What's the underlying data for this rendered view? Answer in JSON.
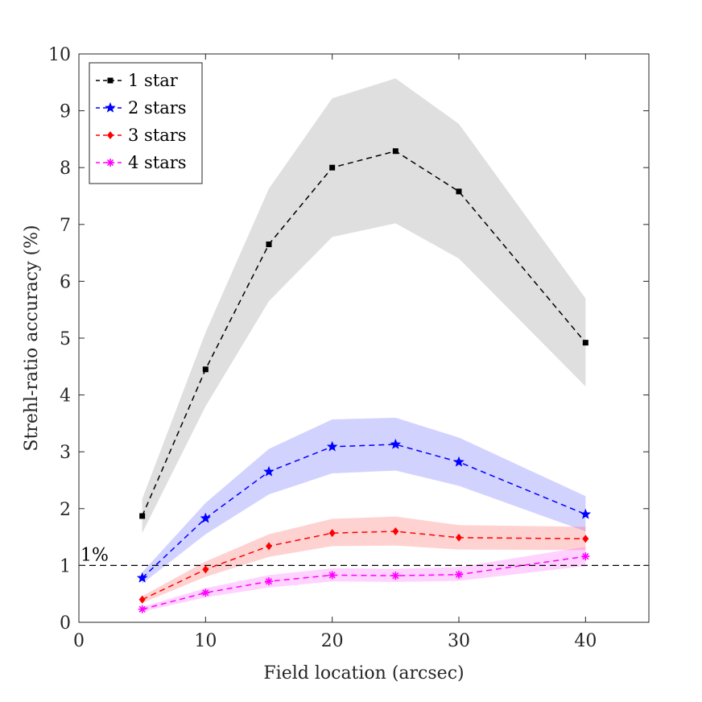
{
  "chart_data": {
    "type": "line",
    "title": "",
    "xlabel": "Field location (arcsec)",
    "ylabel": "Strehl-ratio accuracy (%)",
    "xlim": [
      0,
      45
    ],
    "ylim": [
      0,
      10
    ],
    "xticks": [
      0,
      10,
      20,
      30,
      40
    ],
    "yticks": [
      0,
      1,
      2,
      3,
      4,
      5,
      6,
      7,
      8,
      9,
      10
    ],
    "x": [
      5,
      10,
      15,
      20,
      25,
      30,
      40
    ],
    "series": [
      {
        "name": "1 star",
        "color": "#000000",
        "marker": "square",
        "band_color": "#808080",
        "values": [
          1.87,
          4.45,
          6.65,
          8.0,
          8.29,
          7.58,
          4.92
        ],
        "lower": [
          1.57,
          3.8,
          5.65,
          6.78,
          7.02,
          6.4,
          4.15
        ],
        "upper": [
          2.17,
          5.1,
          7.63,
          9.22,
          9.57,
          8.77,
          5.7
        ]
      },
      {
        "name": "2 stars",
        "color": "#0000ff",
        "marker": "star",
        "band_color": "#4d4dff",
        "values": [
          0.78,
          1.83,
          2.65,
          3.09,
          3.13,
          2.82,
          1.9
        ],
        "lower": [
          0.68,
          1.55,
          2.25,
          2.62,
          2.67,
          2.4,
          1.6
        ],
        "upper": [
          0.88,
          2.1,
          3.05,
          3.57,
          3.6,
          3.25,
          2.22
        ]
      },
      {
        "name": "3 stars",
        "color": "#ff0000",
        "marker": "diamond",
        "band_color": "#ff4d4d",
        "values": [
          0.4,
          0.93,
          1.34,
          1.57,
          1.6,
          1.49,
          1.47
        ],
        "lower": [
          0.34,
          0.8,
          1.15,
          1.34,
          1.35,
          1.28,
          1.27
        ],
        "upper": [
          0.46,
          1.07,
          1.55,
          1.82,
          1.86,
          1.71,
          1.68
        ]
      },
      {
        "name": "4 stars",
        "color": "#ff00ff",
        "marker": "asterisk",
        "band_color": "#ff4dff",
        "values": [
          0.23,
          0.52,
          0.72,
          0.83,
          0.82,
          0.84,
          1.16
        ],
        "lower": [
          0.19,
          0.44,
          0.61,
          0.72,
          0.71,
          0.73,
          0.99
        ],
        "upper": [
          0.27,
          0.6,
          0.83,
          0.95,
          0.94,
          0.97,
          1.33
        ]
      }
    ],
    "reference_line": {
      "y": 1,
      "label": "1%",
      "style": "dashed",
      "color": "#000000"
    },
    "legend_position": "top-left",
    "grid": false
  }
}
